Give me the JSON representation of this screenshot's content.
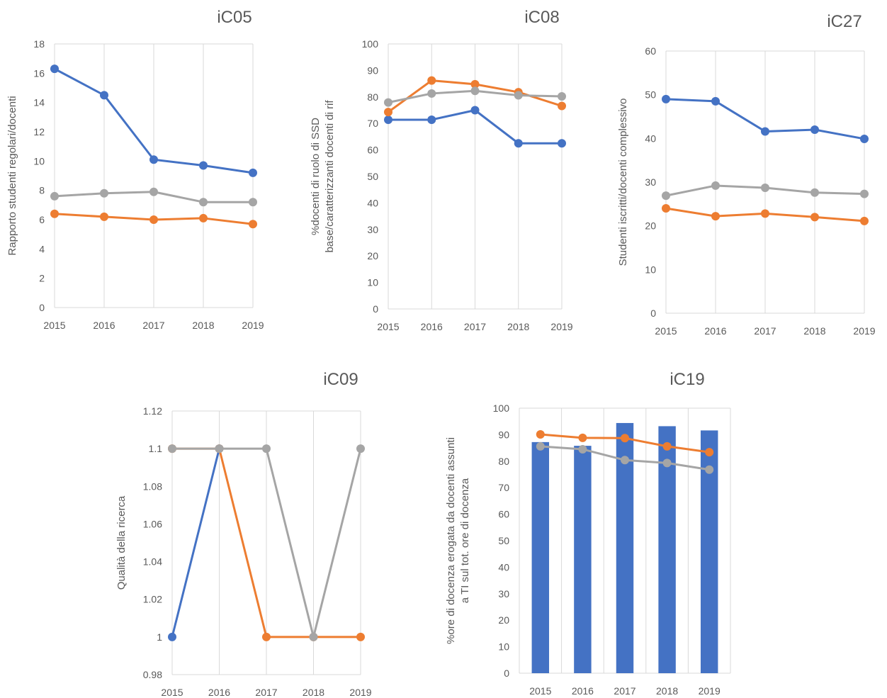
{
  "colors": {
    "blue": "#4472c4",
    "orange": "#ed7d31",
    "gray": "#a5a5a5",
    "grid": "#d9d9d9",
    "text": "#595959"
  },
  "chart_data": [
    {
      "id": "ic05",
      "type": "line",
      "title": "iC05",
      "categories": [
        "2015",
        "2016",
        "2017",
        "2018",
        "2019"
      ],
      "ylabel": [
        "Rapporto studenti regolari/docenti"
      ],
      "yticks": [
        "0",
        "2",
        "4",
        "6",
        "8",
        "10",
        "12",
        "14",
        "16",
        "18"
      ],
      "ylim": [
        0,
        18
      ],
      "grid": "vertical",
      "series": [
        {
          "values": [
            16.3,
            14.5,
            10.1,
            9.7,
            9.2
          ],
          "color": "#4472c4"
        },
        {
          "values": [
            6.4,
            6.2,
            6.0,
            6.1,
            5.7
          ],
          "color": "#ed7d31"
        },
        {
          "values": [
            7.6,
            7.8,
            7.9,
            7.2,
            7.2
          ],
          "color": "#a5a5a5"
        }
      ]
    },
    {
      "id": "ic08",
      "type": "line",
      "title": "iC08",
      "categories": [
        "2015",
        "2016",
        "2017",
        "2018",
        "2019"
      ],
      "ylabel": [
        "%docenti di ruolo di SSD",
        "base/caratterizzanti docenti di rif"
      ],
      "yticks": [
        "0",
        "10",
        "20",
        "30",
        "40",
        "50",
        "60",
        "70",
        "80",
        "90",
        "100"
      ],
      "ylim": [
        0,
        100
      ],
      "grid": "vertical",
      "series": [
        {
          "values": [
            71.4,
            71.4,
            75.0,
            62.5,
            62.5
          ],
          "color": "#4472c4"
        },
        {
          "values": [
            74.3,
            86.2,
            84.8,
            81.8,
            76.6
          ],
          "color": "#ed7d31"
        },
        {
          "values": [
            77.9,
            81.3,
            82.3,
            80.6,
            80.2
          ],
          "color": "#a5a5a5"
        }
      ]
    },
    {
      "id": "ic27",
      "type": "line",
      "title": "iC27",
      "categories": [
        "2015",
        "2016",
        "2017",
        "2018",
        "2019"
      ],
      "ylabel": [
        "Studenti iscritti/docenti complessivo"
      ],
      "yticks": [
        "0",
        "10",
        "20",
        "30",
        "40",
        "50",
        "60"
      ],
      "ylim": [
        0,
        60
      ],
      "grid": "vertical",
      "series": [
        {
          "values": [
            49.0,
            48.5,
            41.6,
            42.0,
            39.9
          ],
          "color": "#4472c4"
        },
        {
          "values": [
            24.0,
            22.2,
            22.8,
            22.0,
            21.1
          ],
          "color": "#ed7d31"
        },
        {
          "values": [
            26.9,
            29.2,
            28.7,
            27.6,
            27.3
          ],
          "color": "#a5a5a5"
        }
      ]
    },
    {
      "id": "ic09",
      "type": "line",
      "title": "iC09",
      "categories": [
        "2015",
        "2016",
        "2017",
        "2018",
        "2019"
      ],
      "ylabel": [
        "Qualità della ricerca"
      ],
      "yticks": [
        "0.98",
        "1",
        "1.02",
        "1.04",
        "1.06",
        "1.08",
        "1.1",
        "1.12"
      ],
      "ylim": [
        0.98,
        1.12
      ],
      "grid": "vertical",
      "series": [
        {
          "values": [
            1.0,
            1.1,
            null,
            null,
            null
          ],
          "color": "#4472c4"
        },
        {
          "values": [
            1.1,
            1.1,
            1.0,
            1.0,
            1.0
          ],
          "color": "#ed7d31"
        },
        {
          "values": [
            1.1,
            1.1,
            1.1,
            1.0,
            1.1
          ],
          "color": "#a5a5a5"
        }
      ]
    },
    {
      "id": "ic19",
      "type": "bar+line",
      "title": "iC19",
      "categories": [
        "2015",
        "2016",
        "2017",
        "2018",
        "2019"
      ],
      "ylabel": [
        "%ore di docenza erogata da docenti assunti",
        "a TI sul tot. ore di docenza"
      ],
      "yticks": [
        "0",
        "10",
        "20",
        "30",
        "40",
        "50",
        "60",
        "70",
        "80",
        "90",
        "100"
      ],
      "ylim": [
        0,
        100
      ],
      "grid": "vertical",
      "bars": {
        "values": [
          87.2,
          85.8,
          94.4,
          93.2,
          91.6
        ],
        "color": "#4472c4"
      },
      "series": [
        {
          "values": [
            90.1,
            88.8,
            88.7,
            85.6,
            83.4
          ],
          "color": "#ed7d31"
        },
        {
          "values": [
            85.6,
            84.5,
            80.4,
            79.3,
            76.8
          ],
          "color": "#a5a5a5"
        }
      ]
    }
  ]
}
